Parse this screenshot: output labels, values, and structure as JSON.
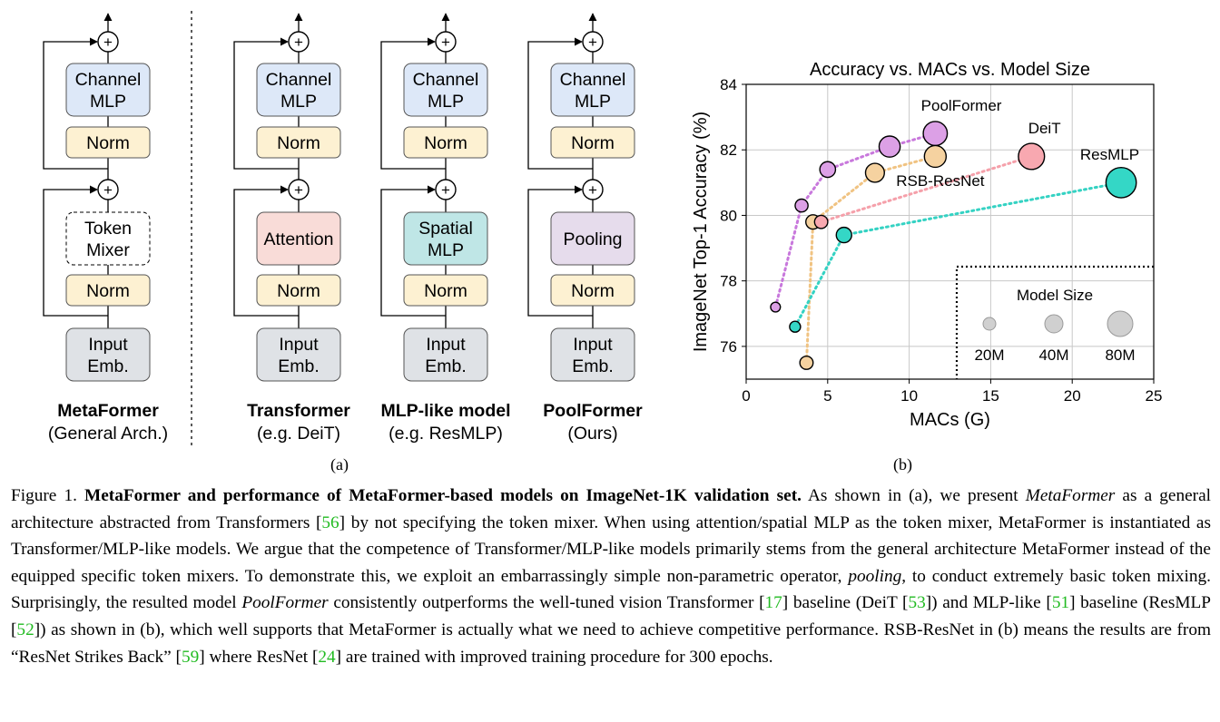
{
  "panel_a": {
    "columns": [
      {
        "id": "metaformer",
        "mixer": [
          "Token",
          "Mixer"
        ],
        "title": "MetaFormer",
        "subtitle": "(General Arch.)",
        "mixer_fill": "#ffffff",
        "mixer_dashed": true
      },
      {
        "id": "transformer",
        "mixer": [
          "Attention"
        ],
        "title": "Transformer",
        "subtitle": "(e.g. DeiT)",
        "mixer_fill": "#f9dcd8",
        "mixer_dashed": false
      },
      {
        "id": "mlp",
        "mixer": [
          "Spatial",
          "MLP"
        ],
        "title": "MLP-like model",
        "subtitle": "(e.g. ResMLP)",
        "mixer_fill": "#bfe6e6",
        "mixer_dashed": false
      },
      {
        "id": "poolformer",
        "mixer": [
          "Pooling"
        ],
        "title": "PoolFormer",
        "subtitle": "(Ours)",
        "mixer_fill": "#e6dcec",
        "mixer_dashed": false
      }
    ],
    "channel_mlp": [
      "Channel",
      "MLP"
    ],
    "norm": "Norm",
    "input_emb": [
      "Input",
      "Emb."
    ],
    "plus": "+",
    "colors": {
      "channel": "#dde8f8",
      "norm": "#fdf1d2",
      "input": "#dfe2e6"
    },
    "label": "(a)"
  },
  "panel_b": {
    "label": "(b)",
    "size_legend": {
      "title": "Model Size",
      "sizes": [
        "20M",
        "40M",
        "80M"
      ]
    }
  },
  "chart_data": {
    "type": "scatter",
    "title": "Accuracy vs. MACs vs. Model Size",
    "xlabel": "MACs (G)",
    "ylabel": "ImageNet Top-1 Accuracy (%)",
    "xlim": [
      0,
      25
    ],
    "ylim": [
      75,
      84
    ],
    "xticks": [
      0,
      5,
      10,
      15,
      20,
      25
    ],
    "yticks": [
      76,
      78,
      80,
      82,
      84
    ],
    "grid": true,
    "series": [
      {
        "name": "PoolFormer",
        "color": "#dca0e6",
        "line": "#c878dc",
        "points": [
          {
            "x": 1.8,
            "y": 77.2,
            "s": 12
          },
          {
            "x": 3.4,
            "y": 80.3,
            "s": 21
          },
          {
            "x": 5.0,
            "y": 81.4,
            "s": 31
          },
          {
            "x": 8.8,
            "y": 82.1,
            "s": 56
          },
          {
            "x": 11.6,
            "y": 82.5,
            "s": 73
          }
        ]
      },
      {
        "name": "RSB-ResNet",
        "color": "#f5d2a0",
        "line": "#f0c382",
        "points": [
          {
            "x": 3.7,
            "y": 75.5,
            "s": 22
          },
          {
            "x": 4.1,
            "y": 79.8,
            "s": 26
          },
          {
            "x": 7.9,
            "y": 81.3,
            "s": 45
          },
          {
            "x": 11.6,
            "y": 81.8,
            "s": 60
          }
        ]
      },
      {
        "name": "DeiT",
        "color": "#f8a8b0",
        "line": "#f5a0aa",
        "points": [
          {
            "x": 4.6,
            "y": 79.8,
            "s": 22
          },
          {
            "x": 17.5,
            "y": 81.8,
            "s": 86
          }
        ]
      },
      {
        "name": "ResMLP",
        "color": "#34d7c6",
        "line": "#34d2c3",
        "points": [
          {
            "x": 3.0,
            "y": 76.6,
            "s": 15
          },
          {
            "x": 6.0,
            "y": 79.4,
            "s": 30
          },
          {
            "x": 23.0,
            "y": 81.0,
            "s": 116
          }
        ]
      }
    ]
  },
  "caption": {
    "figure": "Figure 1.",
    "bold": "MetaFormer and performance of MetaFormer-based models on ImageNet-1K validation set.",
    "s1": "As shown in (a), we present",
    "it1": "MetaFormer",
    "s2": "as a general architecture abstracted from Transformers [",
    "r1": "56",
    "s3": "] by not specifying the token mixer. When using attention/spatial MLP as the token mixer, MetaFormer is instantiated as Transformer/MLP-like models. We argue that the competence of Transformer/MLP-like models primarily stems from the general architecture MetaFormer instead of the equipped specific token mixers. To demonstrate this, we exploit an embarrassingly simple non-parametric operator,",
    "it2": "pooling",
    "s4": ", to conduct extremely basic token mixing. Surprisingly, the resulted model",
    "it3": "PoolFormer",
    "s5": "consistently outperforms the well-tuned vision Transformer [",
    "r2": "17",
    "s6": "] baseline (DeiT [",
    "r3": "53",
    "s7": "]) and MLP-like [",
    "r4": "51",
    "s8": "] baseline (ResMLP [",
    "r5": "52",
    "s9": "]) as shown in (b), which well supports that MetaFormer is actually what we need to achieve competitive performance. RSB-ResNet in (b) means the results are from “ResNet Strikes Back” [",
    "r6": "59",
    "s10": "] where ResNet [",
    "r7": "24",
    "s11": "] are trained with improved training procedure for 300 epochs."
  }
}
